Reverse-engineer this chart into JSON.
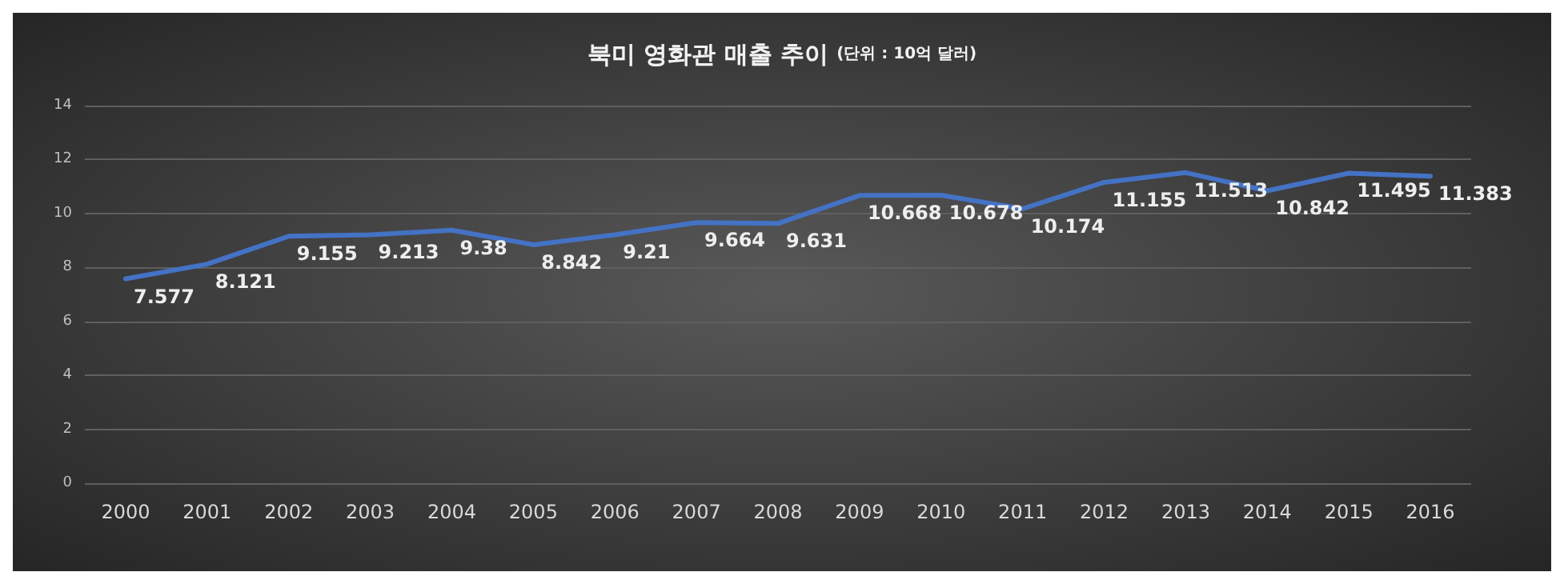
{
  "chart_data": {
    "type": "line",
    "title": "북미 영화관 매출 추이",
    "subtitle": "(단위 : 10억 달러)",
    "categories": [
      "2000",
      "2001",
      "2002",
      "2003",
      "2004",
      "2005",
      "2006",
      "2007",
      "2008",
      "2009",
      "2010",
      "2011",
      "2012",
      "2013",
      "2014",
      "2015",
      "2016"
    ],
    "series": [
      {
        "color": "#4472c4",
        "values": [
          7.577,
          8.121,
          9.155,
          9.213,
          9.38,
          8.842,
          9.21,
          9.664,
          9.631,
          10.668,
          10.678,
          10.174,
          11.155,
          11.513,
          10.842,
          11.495,
          11.383
        ]
      }
    ],
    "ylim": [
      0,
      14
    ],
    "yticks": [
      0,
      2,
      4,
      6,
      8,
      10,
      12,
      14
    ],
    "grid": "y",
    "marker": "none",
    "line_style": "solid",
    "data_labels": true
  }
}
